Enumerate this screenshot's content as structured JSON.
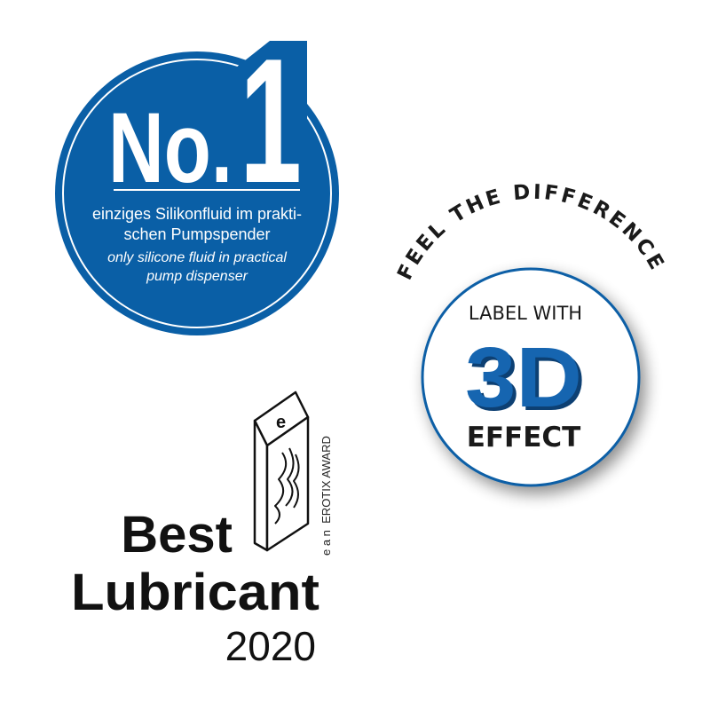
{
  "colors": {
    "brand_blue": "#0a5fa6",
    "dark_blue": "#0a3f73",
    "text_dark": "#1a1a1a"
  },
  "no1_badge": {
    "no_text": "No.",
    "one_text": "1",
    "german_line1": "einziges Silikonfluid im prakti-",
    "german_line2": "schen Pumpspender",
    "english_line1": "only silicone fluid in practical",
    "english_line2": "pump dispenser"
  },
  "effect_badge": {
    "arc_text": "FEEL THE DIFFERENCE",
    "line1": "LABEL WITH",
    "big": "3D",
    "line3": "EFFECT"
  },
  "award": {
    "trophy_letter": "e",
    "side_text": "e a n  EROTIX AWARD",
    "title_line1": "Best",
    "title_line2": "Lubricant",
    "year": "2020"
  }
}
